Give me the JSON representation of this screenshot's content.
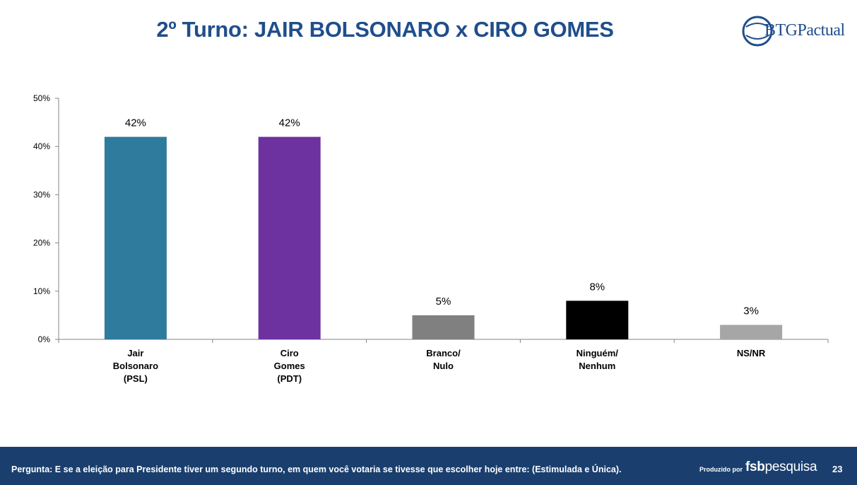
{
  "header": {
    "title": "2º Turno: JAIR BOLSONARO x CIRO GOMES",
    "logo_text": "BTGPactual"
  },
  "chart_data": {
    "type": "bar",
    "categories": [
      [
        "Jair",
        "Bolsonaro",
        "(PSL)"
      ],
      [
        "Ciro",
        "Gomes",
        "(PDT)"
      ],
      [
        "Branco/",
        "Nulo"
      ],
      [
        "Ninguém/",
        "Nenhum"
      ],
      [
        "NS/NR"
      ]
    ],
    "values": [
      42,
      42,
      5,
      8,
      3
    ],
    "data_labels": [
      "42%",
      "42%",
      "5%",
      "8%",
      "3%"
    ],
    "colors": [
      "#2e7b9e",
      "#6e31a0",
      "#808080",
      "#000000",
      "#a6a6a6"
    ],
    "ylim": [
      0,
      50
    ],
    "yticks": [
      0,
      10,
      20,
      30,
      40,
      50
    ],
    "ytick_labels": [
      "0%",
      "10%",
      "20%",
      "30%",
      "40%",
      "50%"
    ],
    "grid": false,
    "legend": "none",
    "xlabel": "",
    "ylabel": ""
  },
  "footer": {
    "question": "Pergunta:  E se a eleição para Presidente tiver um segundo turno, em quem você votaria se tivesse que escolher hoje entre:  (Estimulada e Única).",
    "produced_by": "Produzido por",
    "brand_bold": "fsb",
    "brand_rest": "pesquisa",
    "page_number": "23"
  }
}
